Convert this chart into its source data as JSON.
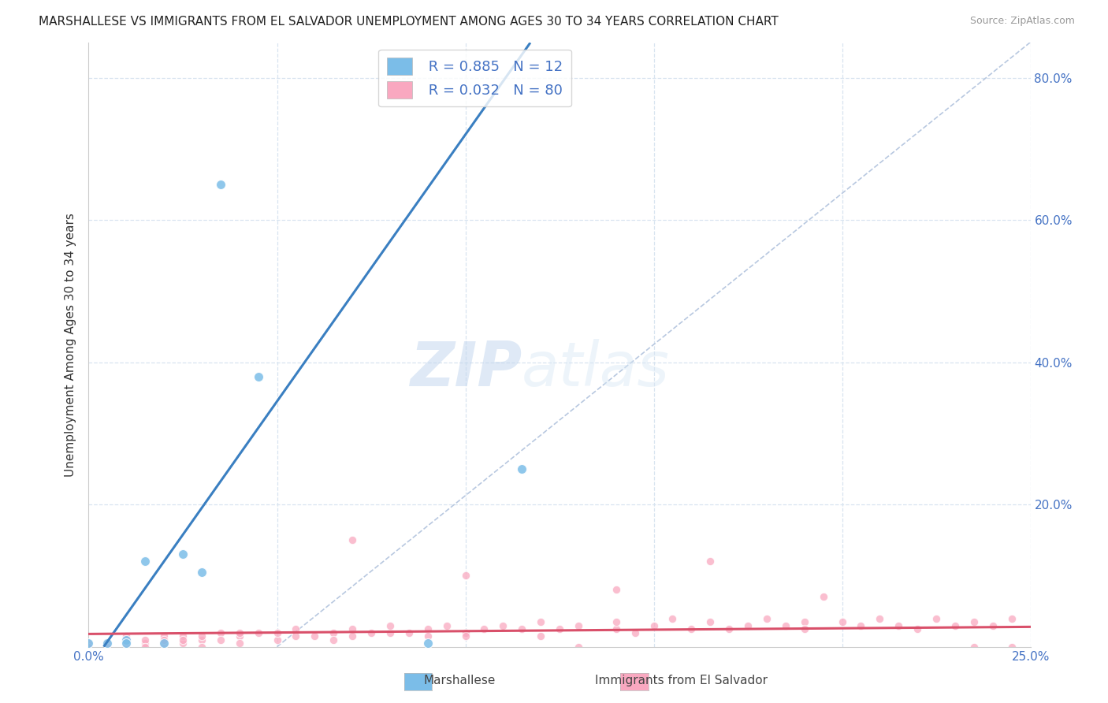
{
  "title": "MARSHALLESE VS IMMIGRANTS FROM EL SALVADOR UNEMPLOYMENT AMONG AGES 30 TO 34 YEARS CORRELATION CHART",
  "source": "Source: ZipAtlas.com",
  "ylabel": "Unemployment Among Ages 30 to 34 years",
  "xlim": [
    0.0,
    0.25
  ],
  "ylim": [
    0.0,
    0.85
  ],
  "legend_r1": "R = 0.885",
  "legend_n1": "N = 12",
  "legend_r2": "R = 0.032",
  "legend_n2": "N = 80",
  "color_marshallese": "#7bbde8",
  "color_salvador": "#f9a8c0",
  "color_line_marshallese": "#3a7fc1",
  "color_line_salvador": "#d9506a",
  "color_diagonal": "#b8c8e0",
  "background": "#ffffff",
  "grid_color": "#d8e4f0",
  "watermark_zip": "ZIP",
  "watermark_atlas": "atlas",
  "marshallese_x": [
    0.0,
    0.005,
    0.01,
    0.01,
    0.015,
    0.02,
    0.025,
    0.03,
    0.035,
    0.045,
    0.09,
    0.115
  ],
  "marshallese_y": [
    0.005,
    0.005,
    0.01,
    0.005,
    0.12,
    0.005,
    0.13,
    0.105,
    0.65,
    0.38,
    0.005,
    0.25
  ],
  "salvador_x": [
    0.0,
    0.0,
    0.005,
    0.005,
    0.01,
    0.01,
    0.015,
    0.015,
    0.015,
    0.02,
    0.02,
    0.02,
    0.025,
    0.025,
    0.025,
    0.03,
    0.03,
    0.03,
    0.035,
    0.035,
    0.04,
    0.04,
    0.04,
    0.045,
    0.05,
    0.05,
    0.055,
    0.055,
    0.06,
    0.065,
    0.065,
    0.07,
    0.07,
    0.075,
    0.08,
    0.08,
    0.085,
    0.09,
    0.09,
    0.095,
    0.1,
    0.1,
    0.105,
    0.11,
    0.115,
    0.12,
    0.12,
    0.125,
    0.13,
    0.13,
    0.14,
    0.14,
    0.145,
    0.15,
    0.155,
    0.16,
    0.165,
    0.17,
    0.175,
    0.18,
    0.185,
    0.19,
    0.19,
    0.2,
    0.205,
    0.21,
    0.215,
    0.22,
    0.225,
    0.23,
    0.235,
    0.24,
    0.245,
    0.245,
    0.07,
    0.1,
    0.14,
    0.165,
    0.195,
    0.235
  ],
  "salvador_y": [
    0.005,
    -0.01,
    0.005,
    -0.01,
    0.005,
    0.015,
    0.005,
    0.01,
    -0.005,
    0.015,
    0.005,
    0.01,
    0.005,
    0.015,
    0.01,
    0.01,
    0.015,
    -0.005,
    0.02,
    0.01,
    0.015,
    0.02,
    0.005,
    0.02,
    0.01,
    0.02,
    0.015,
    0.025,
    0.015,
    0.02,
    0.01,
    0.025,
    0.015,
    0.02,
    0.02,
    0.03,
    0.02,
    0.025,
    0.015,
    0.03,
    0.02,
    0.015,
    0.025,
    0.03,
    0.025,
    0.015,
    0.035,
    0.025,
    0.03,
    -0.01,
    0.025,
    0.035,
    0.02,
    0.03,
    0.04,
    0.025,
    0.035,
    0.025,
    0.03,
    0.04,
    0.03,
    0.035,
    0.025,
    0.035,
    0.03,
    0.04,
    0.03,
    0.025,
    0.04,
    0.03,
    0.035,
    0.03,
    0.04,
    -0.01,
    0.15,
    0.1,
    0.08,
    0.12,
    0.07,
    -0.015
  ]
}
